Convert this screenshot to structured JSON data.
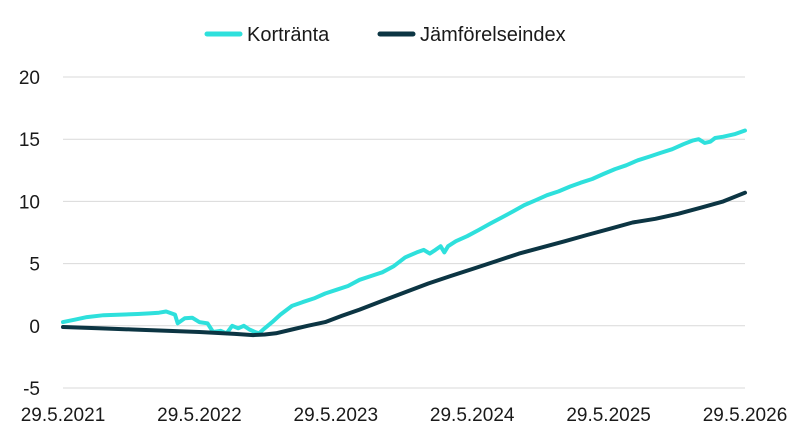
{
  "chart_data": {
    "type": "line",
    "title": "",
    "xlabel": "",
    "ylabel": "",
    "ylim": [
      -5,
      20
    ],
    "y_ticks": [
      "-5",
      "0",
      "5",
      "10",
      "15",
      "20"
    ],
    "x_ticks": [
      "29.5.2021",
      "29.5.2022",
      "29.5.2023",
      "29.5.2024",
      "29.5.2025",
      "29.5.2026"
    ],
    "xlim": [
      "2021-05-29",
      "2026-05-29"
    ],
    "grid": "horizontal",
    "legend_position": "top",
    "series": [
      {
        "name": "Korträntа",
        "color": "#2ee0dc",
        "points": [
          [
            "2021-05-29",
            0.3
          ],
          [
            "2021-07-01",
            0.5
          ],
          [
            "2021-08-01",
            0.7
          ],
          [
            "2021-09-15",
            0.85
          ],
          [
            "2021-11-01",
            0.9
          ],
          [
            "2021-12-15",
            0.95
          ],
          [
            "2022-01-15",
            1.0
          ],
          [
            "2022-02-10",
            1.05
          ],
          [
            "2022-03-01",
            1.15
          ],
          [
            "2022-03-25",
            0.9
          ],
          [
            "2022-04-01",
            0.2
          ],
          [
            "2022-04-20",
            0.6
          ],
          [
            "2022-05-10",
            0.65
          ],
          [
            "2022-05-29",
            0.3
          ],
          [
            "2022-06-20",
            0.2
          ],
          [
            "2022-07-05",
            -0.5
          ],
          [
            "2022-07-25",
            -0.4
          ],
          [
            "2022-08-10",
            -0.6
          ],
          [
            "2022-08-25",
            0.0
          ],
          [
            "2022-09-10",
            -0.2
          ],
          [
            "2022-09-25",
            0.0
          ],
          [
            "2022-10-10",
            -0.3
          ],
          [
            "2022-10-25",
            -0.5
          ],
          [
            "2022-11-05",
            -0.6
          ],
          [
            "2022-11-20",
            -0.2
          ],
          [
            "2022-12-10",
            0.3
          ],
          [
            "2023-01-01",
            0.9
          ],
          [
            "2023-02-01",
            1.6
          ],
          [
            "2023-03-01",
            1.9
          ],
          [
            "2023-04-01",
            2.2
          ],
          [
            "2023-05-01",
            2.6
          ],
          [
            "2023-06-01",
            2.9
          ],
          [
            "2023-07-01",
            3.2
          ],
          [
            "2023-08-01",
            3.7
          ],
          [
            "2023-09-01",
            4.0
          ],
          [
            "2023-10-01",
            4.3
          ],
          [
            "2023-11-01",
            4.8
          ],
          [
            "2023-12-01",
            5.5
          ],
          [
            "2024-01-01",
            5.9
          ],
          [
            "2024-01-20",
            6.1
          ],
          [
            "2024-02-05",
            5.8
          ],
          [
            "2024-02-20",
            6.1
          ],
          [
            "2024-03-05",
            6.4
          ],
          [
            "2024-03-15",
            5.9
          ],
          [
            "2024-03-25",
            6.4
          ],
          [
            "2024-04-15",
            6.8
          ],
          [
            "2024-05-15",
            7.2
          ],
          [
            "2024-06-15",
            7.7
          ],
          [
            "2024-07-15",
            8.2
          ],
          [
            "2024-08-15",
            8.7
          ],
          [
            "2024-09-15",
            9.2
          ],
          [
            "2024-10-15",
            9.7
          ],
          [
            "2024-11-15",
            10.1
          ],
          [
            "2024-12-15",
            10.5
          ],
          [
            "2025-01-15",
            10.8
          ],
          [
            "2025-02-15",
            11.2
          ],
          [
            "2025-03-15",
            11.5
          ],
          [
            "2025-04-15",
            11.8
          ],
          [
            "2025-05-15",
            12.2
          ],
          [
            "2025-06-15",
            12.6
          ],
          [
            "2025-07-15",
            12.9
          ],
          [
            "2025-08-15",
            13.3
          ],
          [
            "2025-09-15",
            13.6
          ],
          [
            "2025-10-15",
            13.9
          ],
          [
            "2025-11-15",
            14.2
          ],
          [
            "2025-12-15",
            14.6
          ],
          [
            "2026-01-10",
            14.9
          ],
          [
            "2026-01-25",
            15.0
          ],
          [
            "2026-02-10",
            14.7
          ],
          [
            "2026-02-25",
            14.8
          ],
          [
            "2026-03-10",
            15.1
          ],
          [
            "2026-04-01",
            15.2
          ],
          [
            "2026-05-01",
            15.4
          ],
          [
            "2026-05-29",
            15.7
          ]
        ]
      },
      {
        "name": "Jämförelseindex",
        "color": "#0c3543",
        "points": [
          [
            "2021-05-29",
            -0.1
          ],
          [
            "2021-09-01",
            -0.2
          ],
          [
            "2021-12-01",
            -0.3
          ],
          [
            "2022-03-01",
            -0.4
          ],
          [
            "2022-05-29",
            -0.5
          ],
          [
            "2022-09-01",
            -0.65
          ],
          [
            "2022-10-20",
            -0.75
          ],
          [
            "2022-11-20",
            -0.7
          ],
          [
            "2022-12-20",
            -0.6
          ],
          [
            "2023-02-01",
            -0.3
          ],
          [
            "2023-03-15",
            0.0
          ],
          [
            "2023-05-01",
            0.3
          ],
          [
            "2023-06-15",
            0.8
          ],
          [
            "2023-08-01",
            1.3
          ],
          [
            "2023-10-01",
            2.0
          ],
          [
            "2023-12-01",
            2.7
          ],
          [
            "2024-02-01",
            3.4
          ],
          [
            "2024-04-01",
            4.0
          ],
          [
            "2024-06-01",
            4.6
          ],
          [
            "2024-08-01",
            5.2
          ],
          [
            "2024-10-01",
            5.8
          ],
          [
            "2024-12-01",
            6.3
          ],
          [
            "2025-02-01",
            6.8
          ],
          [
            "2025-04-01",
            7.3
          ],
          [
            "2025-06-01",
            7.8
          ],
          [
            "2025-08-01",
            8.3
          ],
          [
            "2025-10-01",
            8.6
          ],
          [
            "2025-12-01",
            9.0
          ],
          [
            "2026-02-01",
            9.5
          ],
          [
            "2026-04-01",
            10.0
          ],
          [
            "2026-05-29",
            10.7
          ]
        ]
      }
    ]
  }
}
